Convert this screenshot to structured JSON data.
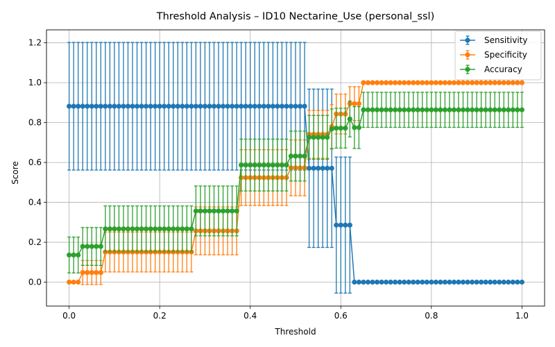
{
  "chart_data": {
    "type": "line",
    "title": "Threshold Analysis – ID10 Nectarine_Use (personal_ssl)",
    "xlabel": "Threshold",
    "ylabel": "Score",
    "xlim": [
      -0.05,
      1.05
    ],
    "ylim": [
      -0.12,
      1.265
    ],
    "xticks": [
      0.0,
      0.2,
      0.4,
      0.6,
      0.8,
      1.0
    ],
    "xtick_labels": [
      "0.0",
      "0.2",
      "0.4",
      "0.6",
      "0.8",
      "1.0"
    ],
    "yticks": [
      0.0,
      0.2,
      0.4,
      0.6,
      0.8,
      1.0,
      1.2
    ],
    "ytick_labels": [
      "0.0",
      "0.2",
      "0.4",
      "0.6",
      "0.8",
      "1.0",
      "1.2"
    ],
    "grid": true,
    "legend_position": "top-right",
    "x": {
      "start": 0.0,
      "stop": 1.0,
      "count": 101
    },
    "series": [
      {
        "name": "Sensitivity",
        "color": "#1f77b4",
        "steps": [
          {
            "x_from": 0.0,
            "x_to": 0.52,
            "value": 0.882,
            "error": 0.32
          },
          {
            "x_from": 0.53,
            "x_to": 0.58,
            "value": 0.571,
            "error": 0.397
          },
          {
            "x_from": 0.59,
            "x_to": 0.62,
            "value": 0.286,
            "error": 0.341
          },
          {
            "x_from": 0.63,
            "x_to": 1.0,
            "value": 0.0,
            "error": 0.0
          }
        ]
      },
      {
        "name": "Specificity",
        "color": "#ff7f0e",
        "steps": [
          {
            "x_from": 0.0,
            "x_to": 0.02,
            "value": 0.0,
            "error": 0.0
          },
          {
            "x_from": 0.03,
            "x_to": 0.07,
            "value": 0.048,
            "error": 0.06
          },
          {
            "x_from": 0.08,
            "x_to": 0.27,
            "value": 0.151,
            "error": 0.1
          },
          {
            "x_from": 0.28,
            "x_to": 0.37,
            "value": 0.257,
            "error": 0.12
          },
          {
            "x_from": 0.38,
            "x_to": 0.48,
            "value": 0.524,
            "error": 0.14
          },
          {
            "x_from": 0.49,
            "x_to": 0.52,
            "value": 0.573,
            "error": 0.14
          },
          {
            "x_from": 0.53,
            "x_to": 0.57,
            "value": 0.741,
            "error": 0.12
          },
          {
            "x_from": 0.58,
            "x_to": 0.58,
            "value": 0.78,
            "error": 0.11
          },
          {
            "x_from": 0.59,
            "x_to": 0.61,
            "value": 0.843,
            "error": 0.1
          },
          {
            "x_from": 0.62,
            "x_to": 0.64,
            "value": 0.895,
            "error": 0.085
          },
          {
            "x_from": 0.65,
            "x_to": 1.0,
            "value": 1.0,
            "error": 0.0
          }
        ]
      },
      {
        "name": "Accuracy",
        "color": "#2ca02c",
        "steps": [
          {
            "x_from": 0.0,
            "x_to": 0.02,
            "value": 0.136,
            "error": 0.09
          },
          {
            "x_from": 0.03,
            "x_to": 0.07,
            "value": 0.179,
            "error": 0.095
          },
          {
            "x_from": 0.08,
            "x_to": 0.27,
            "value": 0.267,
            "error": 0.115
          },
          {
            "x_from": 0.28,
            "x_to": 0.37,
            "value": 0.357,
            "error": 0.125
          },
          {
            "x_from": 0.38,
            "x_to": 0.48,
            "value": 0.587,
            "error": 0.13
          },
          {
            "x_from": 0.49,
            "x_to": 0.52,
            "value": 0.632,
            "error": 0.125
          },
          {
            "x_from": 0.53,
            "x_to": 0.57,
            "value": 0.726,
            "error": 0.11
          },
          {
            "x_from": 0.58,
            "x_to": 0.58,
            "value": 0.768,
            "error": 0.1
          },
          {
            "x_from": 0.59,
            "x_to": 0.61,
            "value": 0.772,
            "error": 0.1
          },
          {
            "x_from": 0.62,
            "x_to": 0.62,
            "value": 0.818,
            "error": 0.09
          },
          {
            "x_from": 0.63,
            "x_to": 0.64,
            "value": 0.775,
            "error": 0.105
          },
          {
            "x_from": 0.65,
            "x_to": 1.0,
            "value": 0.864,
            "error": 0.088
          }
        ]
      }
    ]
  }
}
